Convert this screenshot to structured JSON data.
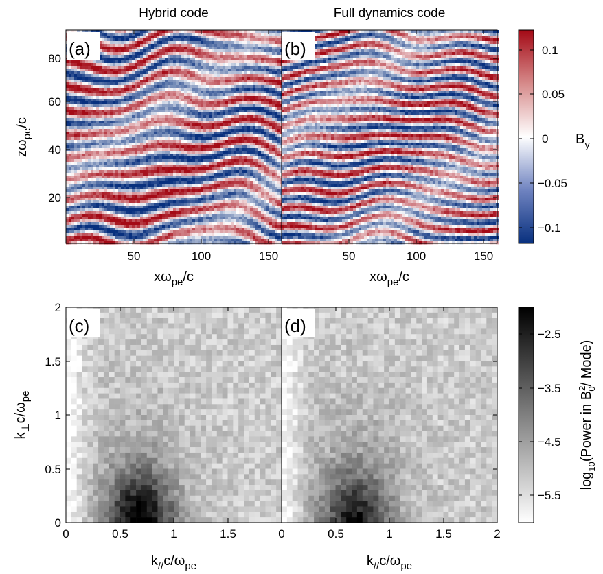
{
  "chart_data": [
    {
      "type": "heatmap",
      "panel": "(a)",
      "title": "Hybrid code",
      "xlabel": "xω_pe/c",
      "ylabel": "zω_pe/c",
      "xlim": [
        0,
        160
      ],
      "ylim": [
        0,
        90
      ],
      "xticks": [
        50,
        100,
        150
      ],
      "yticks": [
        20,
        40,
        60,
        80
      ],
      "colorbar": {
        "label": "B_y",
        "range": [
          -0.12,
          0.12
        ],
        "ticks": [
          "0.1",
          "0.05",
          "0",
          "−0.05",
          "−0.1"
        ],
        "tick_values": [
          0.1,
          0.05,
          0,
          -0.05,
          -0.1
        ],
        "colormap": "blue-white-red"
      }
    },
    {
      "type": "heatmap",
      "panel": "(b)",
      "title": "Full dynamics code",
      "xlabel": "xω_pe/c",
      "xlim": [
        0,
        160
      ],
      "ylim": [
        0,
        90
      ],
      "xticks": [
        50,
        100,
        150
      ],
      "colorbar": {
        "label": "B_y",
        "range": [
          -0.12,
          0.12
        ],
        "colormap": "blue-white-red"
      }
    },
    {
      "type": "heatmap",
      "panel": "(c)",
      "xlabel": "k_// c/ω_pe",
      "ylabel": "k_⊥ c/ω_pe",
      "xlim": [
        0,
        2
      ],
      "ylim": [
        0,
        2
      ],
      "xticks": [
        "0",
        "0.5",
        "1",
        "1.5"
      ],
      "xtick_values": [
        0,
        0.5,
        1,
        1.5
      ],
      "yticks": [
        "0",
        "0.5",
        "1",
        "1.5",
        "2"
      ],
      "ytick_values": [
        0,
        0.5,
        1,
        1.5,
        2
      ],
      "colorbar": {
        "label": "log10(Power in B0²/ Mode)",
        "range": [
          -6,
          -2
        ],
        "ticks": [
          "−2.5",
          "−3.5",
          "−4.5",
          "−5.5"
        ],
        "tick_values": [
          -2.5,
          -3.5,
          -4.5,
          -5.5
        ],
        "colormap": "gray (white=low, black=high)"
      },
      "peak": {
        "k_par": 0.65,
        "k_perp": 0.1,
        "value": -2.2
      }
    },
    {
      "type": "heatmap",
      "panel": "(d)",
      "xlabel": "k_// c/ω_pe",
      "xlim": [
        0,
        2
      ],
      "ylim": [
        0,
        2
      ],
      "xticks": [
        "0",
        "0.5",
        "1",
        "1.5",
        "2"
      ],
      "xtick_values": [
        0,
        0.5,
        1,
        1.5,
        2
      ],
      "colorbar": {
        "label": "log10(Power in B0²/ Mode)",
        "range": [
          -6,
          -2
        ],
        "colormap": "gray (white=low, black=high)"
      },
      "peak": {
        "k_par": 0.65,
        "k_perp": 0.1,
        "value": -2.7
      }
    }
  ],
  "text": {
    "title_a": "Hybrid code",
    "title_b": "Full dynamics code",
    "label_a": "(a)",
    "label_b": "(b)",
    "label_c": "(c)",
    "label_d": "(d)",
    "xlab_top_main": "xω",
    "xlab_top_sub": "pe",
    "xlab_top_tail": "/c",
    "ylab_top_main": "zω",
    "ylab_top_sub": "pe",
    "ylab_top_tail": "/c",
    "xlab_bot_main": "k",
    "xlab_bot_sub": "//",
    "xlab_bot_tail": "c/ω",
    "xlab_bot_sub2": "pe",
    "ylab_bot_main": "k",
    "ylab_bot_sub": "⊥",
    "ylab_bot_tail": "c/ω",
    "ylab_bot_sub2": "pe",
    "cb1_main": "B",
    "cb1_sub": "y",
    "cb2_a": "log",
    "cb2_sub1": "10",
    "cb2_b": "(Power in B",
    "cb2_sup": "2",
    "cb2_sub0": "0",
    "cb2_c": "/ Mode)"
  },
  "ticks": {
    "top_x_a": [
      "50",
      "100",
      "150"
    ],
    "top_x_b": [
      "50",
      "100",
      "150"
    ],
    "top_y": [
      "80",
      "60",
      "40",
      "20"
    ],
    "cb1": [
      "0.1",
      "0.05",
      "0",
      "−0.05",
      "−0.1"
    ],
    "bot_x_c": [
      "0",
      "0.5",
      "1",
      "1.5",
      "0"
    ],
    "bot_x_d": [
      "0.5",
      "1",
      "1.5",
      "2"
    ],
    "bot_y": [
      "2",
      "1.5",
      "1",
      "0.5",
      "0"
    ],
    "cb2": [
      "−2.5",
      "−3.5",
      "−4.5",
      "−5.5"
    ]
  },
  "colors": {
    "red": "#b2182b",
    "blue": "#16398c",
    "white": "#ffffff",
    "black": "#000000"
  }
}
